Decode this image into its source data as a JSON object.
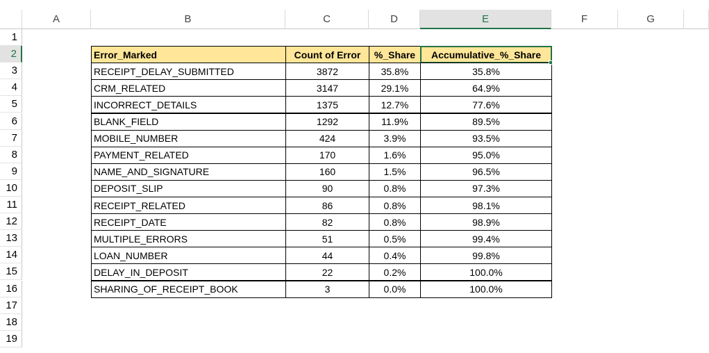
{
  "sheet": {
    "column_headers": [
      "A",
      "B",
      "C",
      "D",
      "E",
      "F",
      "G"
    ],
    "row_headers": [
      "1",
      "2",
      "3",
      "4",
      "5",
      "6",
      "7",
      "8",
      "9",
      "10",
      "11",
      "12",
      "13",
      "14",
      "15",
      "16",
      "17",
      "18",
      "19"
    ],
    "table": {
      "header": [
        "Error_Marked",
        "Count of Error",
        "%_Share",
        "Accumulative_%_Share"
      ],
      "rows": [
        [
          "RECEIPT_DELAY_SUBMITTED",
          "3872",
          "35.8%",
          "35.8%"
        ],
        [
          "CRM_RELATED",
          "3147",
          "29.1%",
          "64.9%"
        ],
        [
          "INCORRECT_DETAILS",
          "1375",
          "12.7%",
          "77.6%"
        ],
        [
          "BLANK_FIELD",
          "1292",
          "11.9%",
          "89.5%"
        ],
        [
          "MOBILE_NUMBER",
          "424",
          "3.9%",
          "93.5%"
        ],
        [
          "PAYMENT_RELATED",
          "170",
          "1.6%",
          "95.0%"
        ],
        [
          "NAME_AND_SIGNATURE",
          "160",
          "1.5%",
          "96.5%"
        ],
        [
          "DEPOSIT_SLIP",
          "90",
          "0.8%",
          "97.3%"
        ],
        [
          "RECEIPT_RELATED",
          "86",
          "0.8%",
          "98.1%"
        ],
        [
          "RECEIPT_DATE",
          "82",
          "0.8%",
          "98.9%"
        ],
        [
          "MULTIPLE_ERRORS",
          "51",
          "0.5%",
          "99.4%"
        ],
        [
          "LOAN_NUMBER",
          "44",
          "0.4%",
          "99.8%"
        ],
        [
          "DELAY_IN_DEPOSIT",
          "22",
          "0.2%",
          "100.0%"
        ],
        [
          "SHARING_OF_RECEIPT_BOOK",
          "3",
          "0.0%",
          "100.0%"
        ]
      ]
    }
  }
}
